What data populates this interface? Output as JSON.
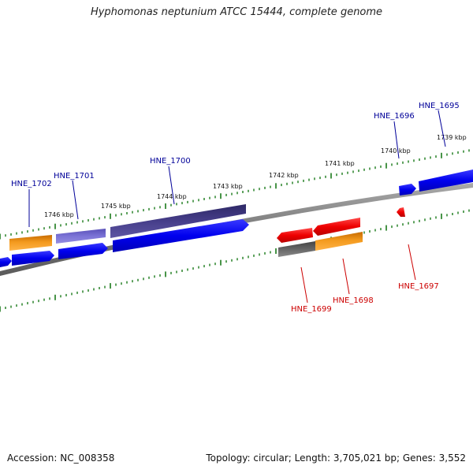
{
  "header": {
    "title": "Hyphomonas neptunium ATCC 15444, complete genome"
  },
  "footer": {
    "accession": "Accession: NC_008358",
    "topology": "Topology: circular; Length: 3,705,021 bp; Genes: 3,552"
  },
  "colors": {
    "forward_strand": "#0000ee",
    "reverse_strand": "#ee0000",
    "forward_label": "#000099",
    "reverse_label": "#cc0000",
    "orange": "#f39a1e",
    "light_purple": "#7b73d6",
    "dark_purple": "#463e8a",
    "dark_gray": "#666666",
    "backbone": "#8a8a8a",
    "ticks": "#1a7a1a"
  },
  "kbp_labels": [
    "1746 kbp",
    "1745 kbp",
    "1744 kbp",
    "1743 kbp",
    "1742 kbp",
    "1741 kbp",
    "1740 kbp",
    "1739 kbp"
  ],
  "forward_genes": [
    "HNE_1702",
    "HNE_1701",
    "HNE_1700",
    "HNE_1696",
    "HNE_1695"
  ],
  "reverse_genes": [
    "HNE_1699",
    "HNE_1698",
    "HNE_1697"
  ]
}
